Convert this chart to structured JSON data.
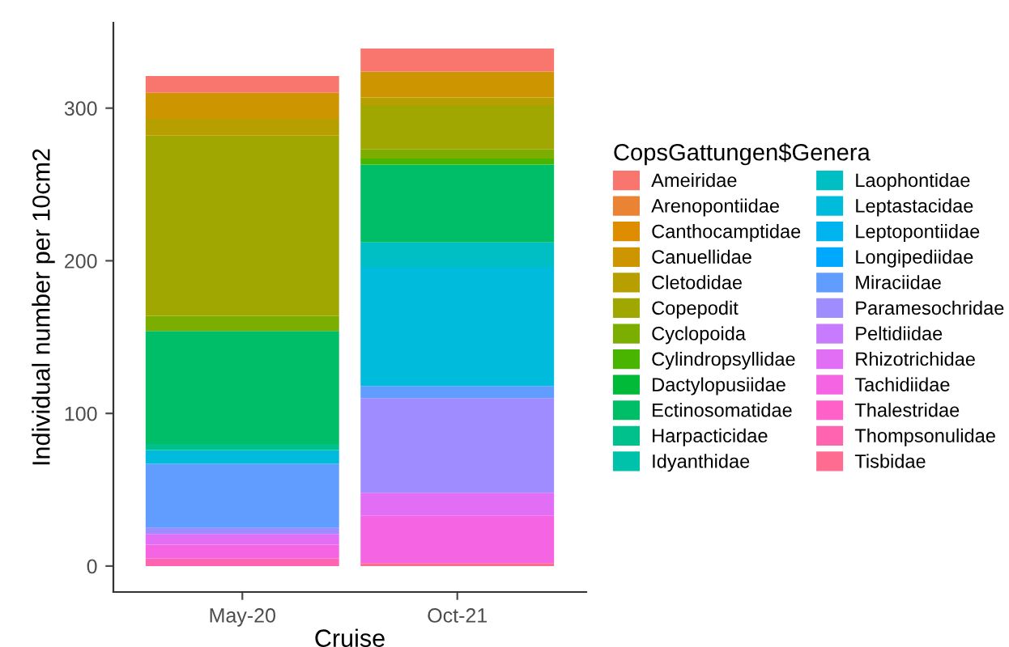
{
  "chart_data": {
    "type": "bar",
    "stacked": true,
    "xlabel": "Cruise",
    "ylabel": "Individual number per 10cm2",
    "legend_title": "CopsGattungen$Genera",
    "categories": [
      "May-20",
      "Oct-21"
    ],
    "ylim": [
      -17,
      356
    ],
    "yticks": [
      0,
      100,
      200,
      300
    ],
    "grid": false,
    "legend": "right",
    "series": [
      {
        "name": "Tisbidae",
        "color": "#ff6c91",
        "values": [
          0,
          2
        ]
      },
      {
        "name": "Thompsonulidae",
        "color": "#ff64b0",
        "values": [
          5,
          0
        ]
      },
      {
        "name": "Thalestridae",
        "color": "#ff61c9",
        "values": [
          0,
          0
        ]
      },
      {
        "name": "Tachidiidae",
        "color": "#f564e3",
        "values": [
          9,
          31
        ]
      },
      {
        "name": "Rhizotrichidae",
        "color": "#e36ef6",
        "values": [
          7,
          15
        ]
      },
      {
        "name": "Peltidiidae",
        "color": "#c77cff",
        "values": [
          0,
          0
        ]
      },
      {
        "name": "Paramesochridae",
        "color": "#9f8cff",
        "values": [
          4,
          62
        ]
      },
      {
        "name": "Miraciidae",
        "color": "#619cff",
        "values": [
          42,
          8
        ]
      },
      {
        "name": "Longipediidae",
        "color": "#00a9ff",
        "values": [
          0,
          0
        ]
      },
      {
        "name": "Leptopontiidae",
        "color": "#00b4ef",
        "values": [
          0,
          0
        ]
      },
      {
        "name": "Leptastacidae",
        "color": "#00bbdb",
        "values": [
          9,
          78
        ]
      },
      {
        "name": "Laophontidae",
        "color": "#00bfc4",
        "values": [
          0,
          16
        ]
      },
      {
        "name": "Idyanthidae",
        "color": "#00c1aa",
        "values": [
          0,
          0
        ]
      },
      {
        "name": "Harpacticidae",
        "color": "#00c08b",
        "values": [
          4,
          0
        ]
      },
      {
        "name": "Ectinosomatidae",
        "color": "#00be67",
        "values": [
          74,
          51
        ]
      },
      {
        "name": "Dactylopusiidae",
        "color": "#00ba38",
        "values": [
          0,
          0
        ]
      },
      {
        "name": "Cylindropsyllidae",
        "color": "#49b500",
        "values": [
          0,
          4
        ]
      },
      {
        "name": "Cyclopoida",
        "color": "#7cae00",
        "values": [
          10,
          6
        ]
      },
      {
        "name": "Copepodit",
        "color": "#9fa700",
        "values": [
          118,
          29
        ]
      },
      {
        "name": "Cletodidae",
        "color": "#b79f00",
        "values": [
          11,
          5
        ]
      },
      {
        "name": "Canuellidae",
        "color": "#cd9600",
        "values": [
          17,
          17
        ]
      },
      {
        "name": "Canthocamptidae",
        "color": "#de8c00",
        "values": [
          0,
          0
        ]
      },
      {
        "name": "Arenopontiidae",
        "color": "#eb8335",
        "values": [
          0,
          0
        ]
      },
      {
        "name": "Ameiridae",
        "color": "#f8766d",
        "values": [
          11,
          15
        ]
      }
    ]
  }
}
